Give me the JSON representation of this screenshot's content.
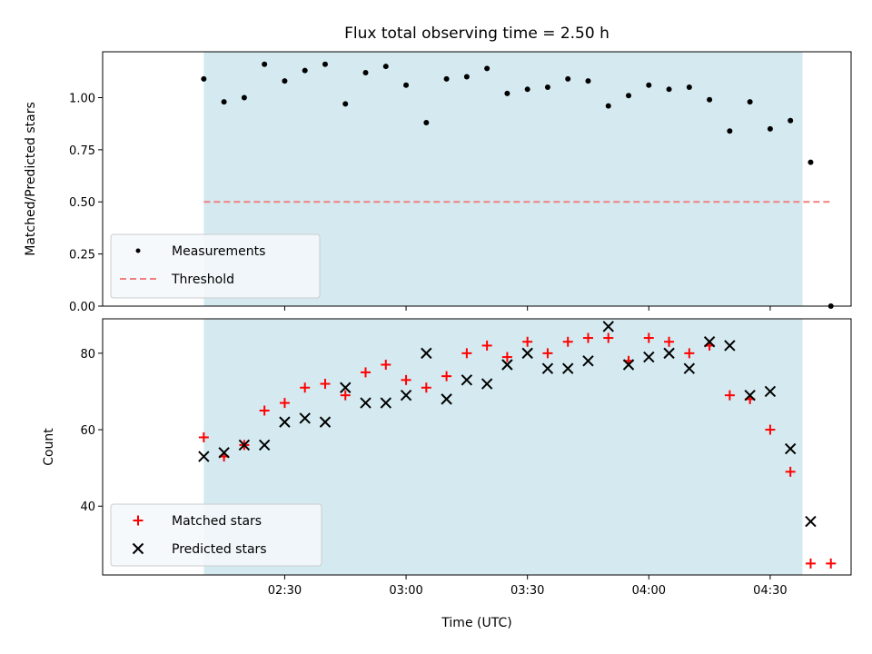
{
  "chart_data": [
    {
      "type": "scatter",
      "title": "Flux total observing time = 2.50 h",
      "ylabel": "Matched/Predicted stars",
      "xlabel": "",
      "ylim": [
        0,
        1.22
      ],
      "yticks": [
        "0.00",
        "0.25",
        "0.50",
        "0.75",
        "1.00"
      ],
      "ytick_values": [
        0,
        0.25,
        0.5,
        0.75,
        1.0
      ],
      "shaded_span": [
        "02:10",
        "04:38"
      ],
      "legend_placement": "lower-left",
      "series": [
        {
          "name": "Measurements",
          "color": "#000000",
          "marker": "dot",
          "points": [
            [
              "02:10",
              1.09
            ],
            [
              "02:15",
              0.98
            ],
            [
              "02:20",
              1.0
            ],
            [
              "02:25",
              1.16
            ],
            [
              "02:30",
              1.08
            ],
            [
              "02:35",
              1.13
            ],
            [
              "02:40",
              1.16
            ],
            [
              "02:45",
              0.97
            ],
            [
              "02:50",
              1.12
            ],
            [
              "02:55",
              1.15
            ],
            [
              "03:00",
              1.06
            ],
            [
              "03:05",
              0.88
            ],
            [
              "03:10",
              1.09
            ],
            [
              "03:15",
              1.1
            ],
            [
              "03:20",
              1.14
            ],
            [
              "03:25",
              1.02
            ],
            [
              "03:30",
              1.04
            ],
            [
              "03:35",
              1.05
            ],
            [
              "03:40",
              1.09
            ],
            [
              "03:45",
              1.08
            ],
            [
              "03:50",
              0.96
            ],
            [
              "03:55",
              1.01
            ],
            [
              "04:00",
              1.06
            ],
            [
              "04:05",
              1.04
            ],
            [
              "04:10",
              1.05
            ],
            [
              "04:15",
              0.99
            ],
            [
              "04:20",
              0.84
            ],
            [
              "04:25",
              0.98
            ],
            [
              "04:30",
              0.85
            ],
            [
              "04:35",
              0.89
            ],
            [
              "04:40",
              0.69
            ],
            [
              "04:45",
              0.0
            ]
          ]
        },
        {
          "name": "Threshold",
          "color": "#f08080",
          "style": "dashed",
          "points": [
            [
              "02:10",
              0.5
            ],
            [
              "04:45",
              0.5
            ]
          ]
        }
      ]
    },
    {
      "type": "scatter",
      "title": "",
      "ylabel": "Count",
      "xlabel": "Time (UTC)",
      "ylim": [
        22,
        89
      ],
      "yticks": [
        "40",
        "60",
        "80"
      ],
      "ytick_values": [
        40,
        60,
        80
      ],
      "xticks": [
        "02:30",
        "03:00",
        "03:30",
        "04:00",
        "04:30"
      ],
      "shaded_span": [
        "02:10",
        "04:38"
      ],
      "legend_placement": "lower-left",
      "series": [
        {
          "name": "Matched stars",
          "color": "#ff0000",
          "marker": "plus",
          "points": [
            [
              "02:10",
              58
            ],
            [
              "02:15",
              53
            ],
            [
              "02:20",
              56
            ],
            [
              "02:25",
              65
            ],
            [
              "02:30",
              67
            ],
            [
              "02:35",
              71
            ],
            [
              "02:40",
              72
            ],
            [
              "02:45",
              69
            ],
            [
              "02:50",
              75
            ],
            [
              "02:55",
              77
            ],
            [
              "03:00",
              73
            ],
            [
              "03:05",
              71
            ],
            [
              "03:10",
              74
            ],
            [
              "03:15",
              80
            ],
            [
              "03:20",
              82
            ],
            [
              "03:25",
              79
            ],
            [
              "03:30",
              83
            ],
            [
              "03:35",
              80
            ],
            [
              "03:40",
              83
            ],
            [
              "03:45",
              84
            ],
            [
              "03:50",
              84
            ],
            [
              "03:55",
              78
            ],
            [
              "04:00",
              84
            ],
            [
              "04:05",
              83
            ],
            [
              "04:10",
              80
            ],
            [
              "04:15",
              82
            ],
            [
              "04:20",
              69
            ],
            [
              "04:25",
              68
            ],
            [
              "04:30",
              60
            ],
            [
              "04:35",
              49
            ],
            [
              "04:40",
              25
            ],
            [
              "04:45",
              25
            ]
          ]
        },
        {
          "name": "Predicted stars",
          "color": "#000000",
          "marker": "x",
          "points": [
            [
              "02:10",
              53
            ],
            [
              "02:15",
              54
            ],
            [
              "02:20",
              56
            ],
            [
              "02:25",
              56
            ],
            [
              "02:30",
              62
            ],
            [
              "02:35",
              63
            ],
            [
              "02:40",
              62
            ],
            [
              "02:45",
              71
            ],
            [
              "02:50",
              67
            ],
            [
              "02:55",
              67
            ],
            [
              "03:00",
              69
            ],
            [
              "03:05",
              80
            ],
            [
              "03:10",
              68
            ],
            [
              "03:15",
              73
            ],
            [
              "03:20",
              72
            ],
            [
              "03:25",
              77
            ],
            [
              "03:30",
              80
            ],
            [
              "03:35",
              76
            ],
            [
              "03:40",
              76
            ],
            [
              "03:45",
              78
            ],
            [
              "03:50",
              87
            ],
            [
              "03:55",
              77
            ],
            [
              "04:00",
              79
            ],
            [
              "04:05",
              80
            ],
            [
              "04:10",
              76
            ],
            [
              "04:15",
              83
            ],
            [
              "04:20",
              82
            ],
            [
              "04:25",
              69
            ],
            [
              "04:30",
              70
            ],
            [
              "04:35",
              55
            ],
            [
              "04:40",
              36
            ]
          ]
        }
      ]
    }
  ],
  "colors": {
    "shade": "#d4eaf0",
    "legend_bg": "#f4f8fb"
  }
}
